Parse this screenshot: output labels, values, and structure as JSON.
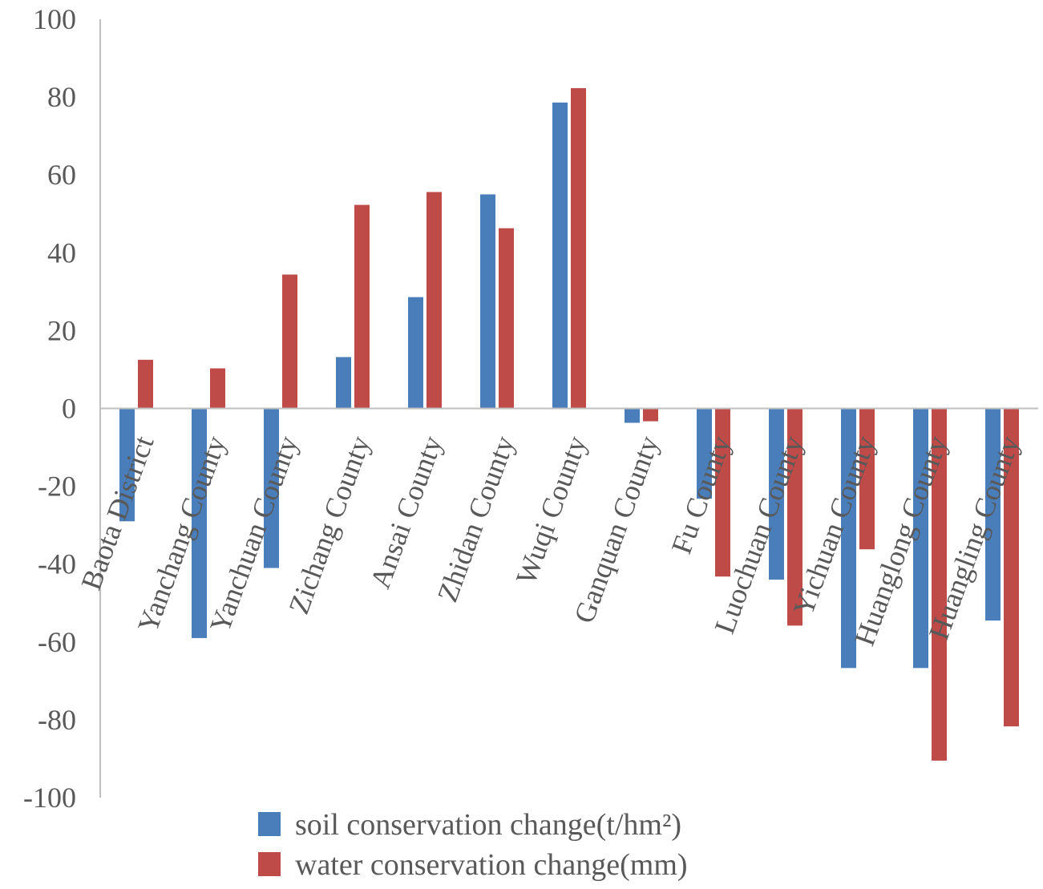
{
  "chart_data": {
    "type": "bar",
    "title": "",
    "xlabel": "",
    "ylabel": "",
    "ylim": [
      -100,
      100
    ],
    "yticks": [
      100,
      80,
      60,
      40,
      20,
      0,
      -20,
      -40,
      -60,
      -80,
      -100
    ],
    "grid": false,
    "legend_position": "bottom",
    "categories": [
      "Baota District",
      "Yanchang County",
      "Yanchuan County",
      "Zichang County",
      "Ansai County",
      "Zhidan County",
      "Wuqi County",
      "Ganquan County",
      "Fu County",
      "Luochuan County",
      "Yichuan County",
      "Huanglong County",
      "Huangling County"
    ],
    "series": [
      {
        "name": "soil conservation change(t/hm²)",
        "color": "#4a7ebb",
        "values": [
          -29,
          -59,
          -41,
          13.2,
          28.6,
          55,
          78.6,
          -3.7,
          -23.2,
          -44,
          -66.7,
          -66.7,
          -54.5
        ]
      },
      {
        "name": "water conservation change(mm)",
        "color": "#be4b48",
        "values": [
          12.5,
          10.3,
          34.4,
          52.3,
          55.6,
          46.3,
          82.3,
          -3.3,
          -43.2,
          -55.8,
          -36.2,
          -90.5,
          -81.7
        ]
      }
    ]
  }
}
